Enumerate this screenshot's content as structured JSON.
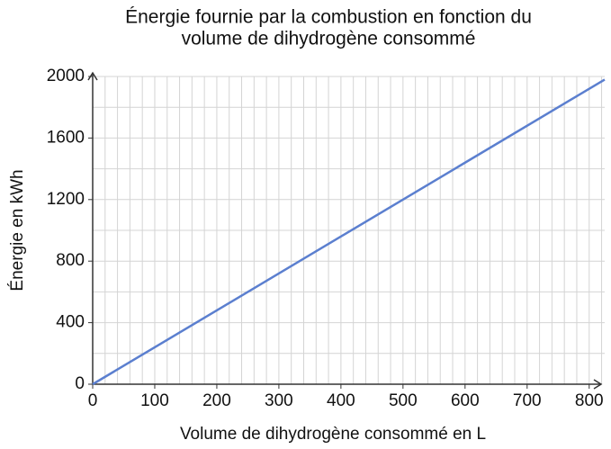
{
  "chart_data": {
    "type": "line",
    "title": [
      "Énergie fournie par la combustion en fonction du",
      "volume de dihydrogène consommé"
    ],
    "x_label": "Volume de dihydrogène consommé en L",
    "y_label": "Énergie en kWh",
    "x": [
      0,
      825
    ],
    "series": [
      {
        "name": "Énergie",
        "color": "#5b7fcf",
        "values": [
          0,
          1980
        ]
      }
    ],
    "xlim": [
      0,
      825
    ],
    "ylim": [
      0,
      2000
    ],
    "xticks": [
      0,
      100,
      200,
      300,
      400,
      500,
      600,
      700,
      800
    ],
    "yticks": [
      0,
      400,
      800,
      1200,
      1600,
      2000
    ],
    "grid": true,
    "grid_x_step": 20,
    "grid_y_step": 200
  }
}
